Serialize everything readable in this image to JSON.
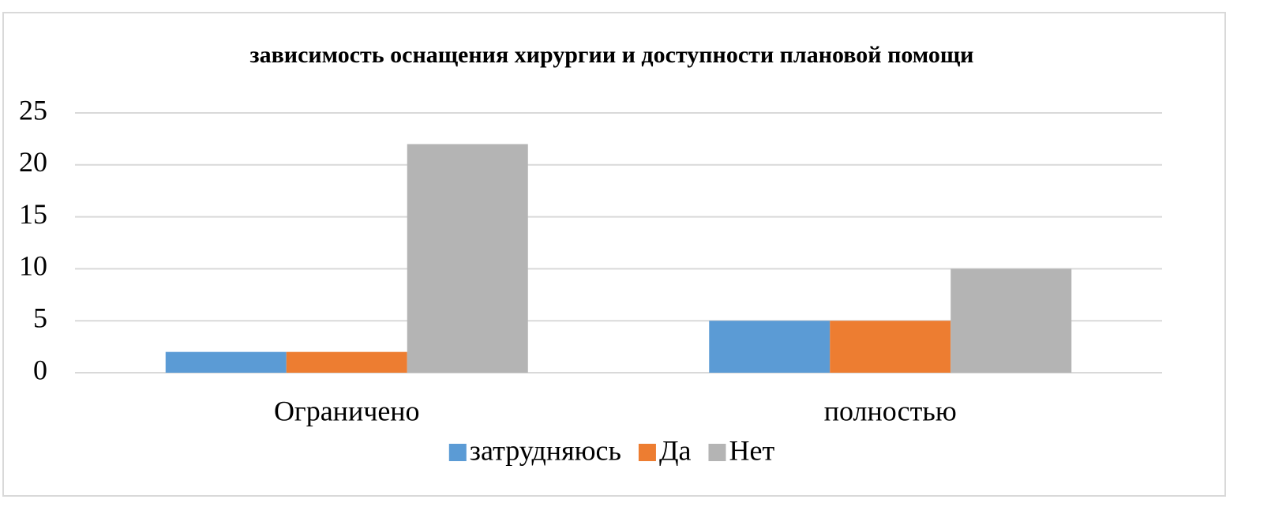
{
  "chart_data": {
    "type": "bar",
    "title": "зависимость оснащения хирургии и доступности плановой помощи",
    "categories": [
      "Ограничено",
      "полностью"
    ],
    "series": [
      {
        "name": "затрудняюсь",
        "color": "#5b9bd5",
        "values": [
          2,
          5
        ]
      },
      {
        "name": "Да",
        "color": "#ed7d31",
        "values": [
          2,
          5
        ]
      },
      {
        "name": "Нет",
        "color": "#b4b4b4",
        "values": [
          22,
          10
        ]
      }
    ],
    "ylim": [
      0,
      25
    ],
    "yticks": [
      0,
      5,
      10,
      15,
      20,
      25
    ],
    "grid": true,
    "legend": "bottom"
  }
}
